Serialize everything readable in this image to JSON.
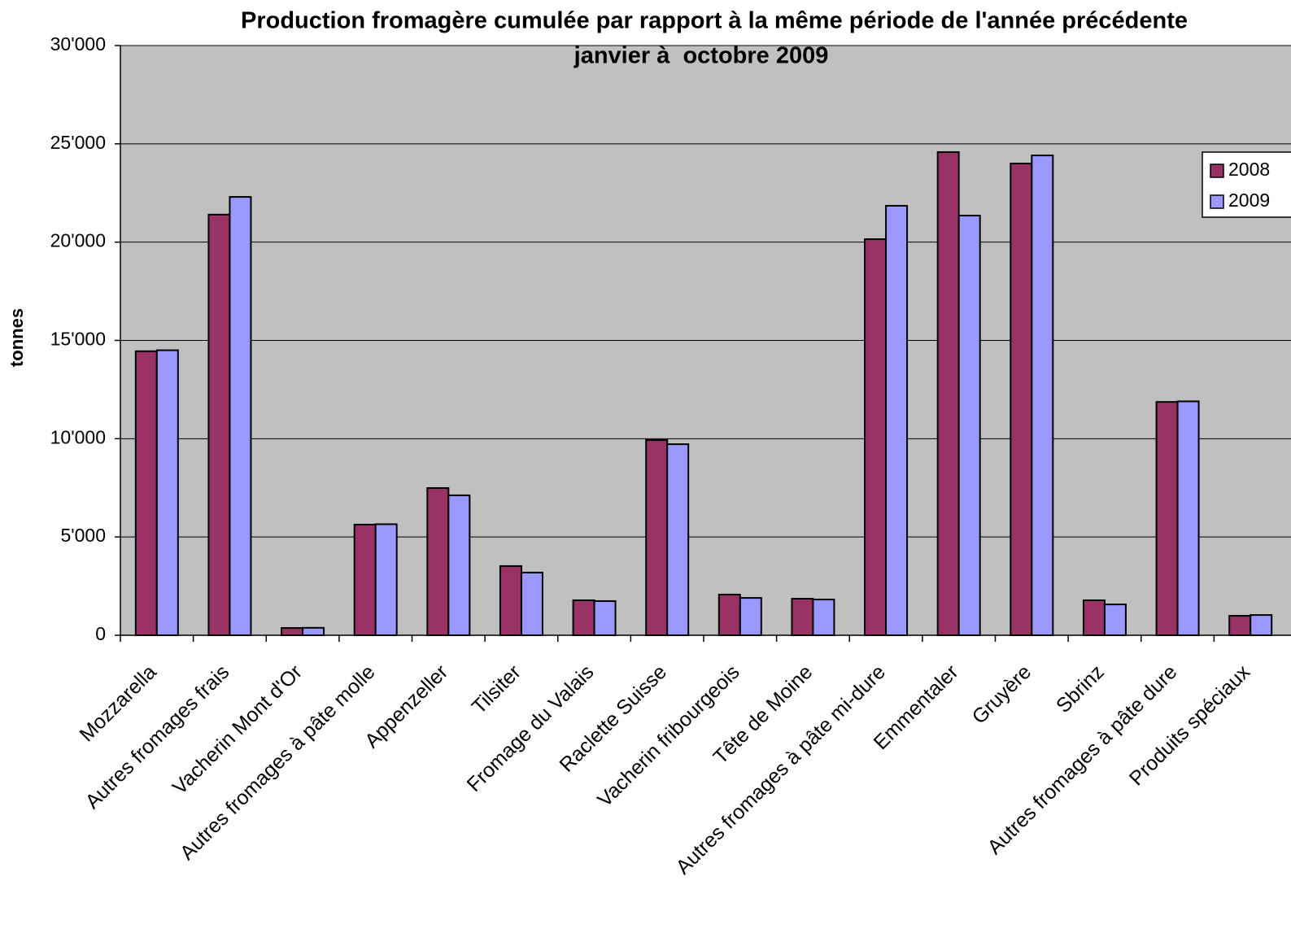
{
  "chart_data": {
    "type": "bar",
    "title": "Production fromagère cumulée par rapport à la même période de l'année précédente",
    "subtitle": "janvier à  octobre 2009",
    "y_label": "tonnes",
    "categories": [
      "Mozzarella",
      "Autres fromages frais",
      "Vacherin Mont d'Or",
      "Autres fromages à pâte molle",
      "Appenzeller",
      "Tilsiter",
      "Fromage du Valais",
      "Raclette Suisse",
      "Vacherin fribourgeois",
      "Tête de Moine",
      "Autres fromages à pâte mi-dure",
      "Emmentaler",
      "Gruyère",
      "Sbrinz",
      "Autres fromages à pâte dure",
      "Produits spéciaux"
    ],
    "series": [
      {
        "name": "2008",
        "color": "#993366",
        "values": [
          14450,
          21400,
          370,
          5630,
          7490,
          3520,
          1780,
          9930,
          2070,
          1860,
          20150,
          24580,
          24000,
          1780,
          11870,
          990
        ]
      },
      {
        "name": "2009",
        "color": "#9999ff",
        "values": [
          14500,
          22300,
          380,
          5650,
          7120,
          3190,
          1740,
          9720,
          1900,
          1820,
          21850,
          21350,
          24410,
          1570,
          11900,
          1030
        ]
      }
    ],
    "ylim": [
      0,
      30000
    ],
    "yticks": [
      0,
      {
        "value": 5000,
        "label": "5'000"
      },
      {
        "value": 10000,
        "label": "10'000"
      },
      {
        "value": 15000,
        "label": "15'000"
      },
      {
        "value": 20000,
        "label": "20'000"
      },
      {
        "value": 25000,
        "label": "25'000"
      },
      {
        "value": 30000,
        "label": "30'000"
      }
    ],
    "grid": true,
    "legend": "right",
    "plot_background": "#c0c0c0"
  }
}
